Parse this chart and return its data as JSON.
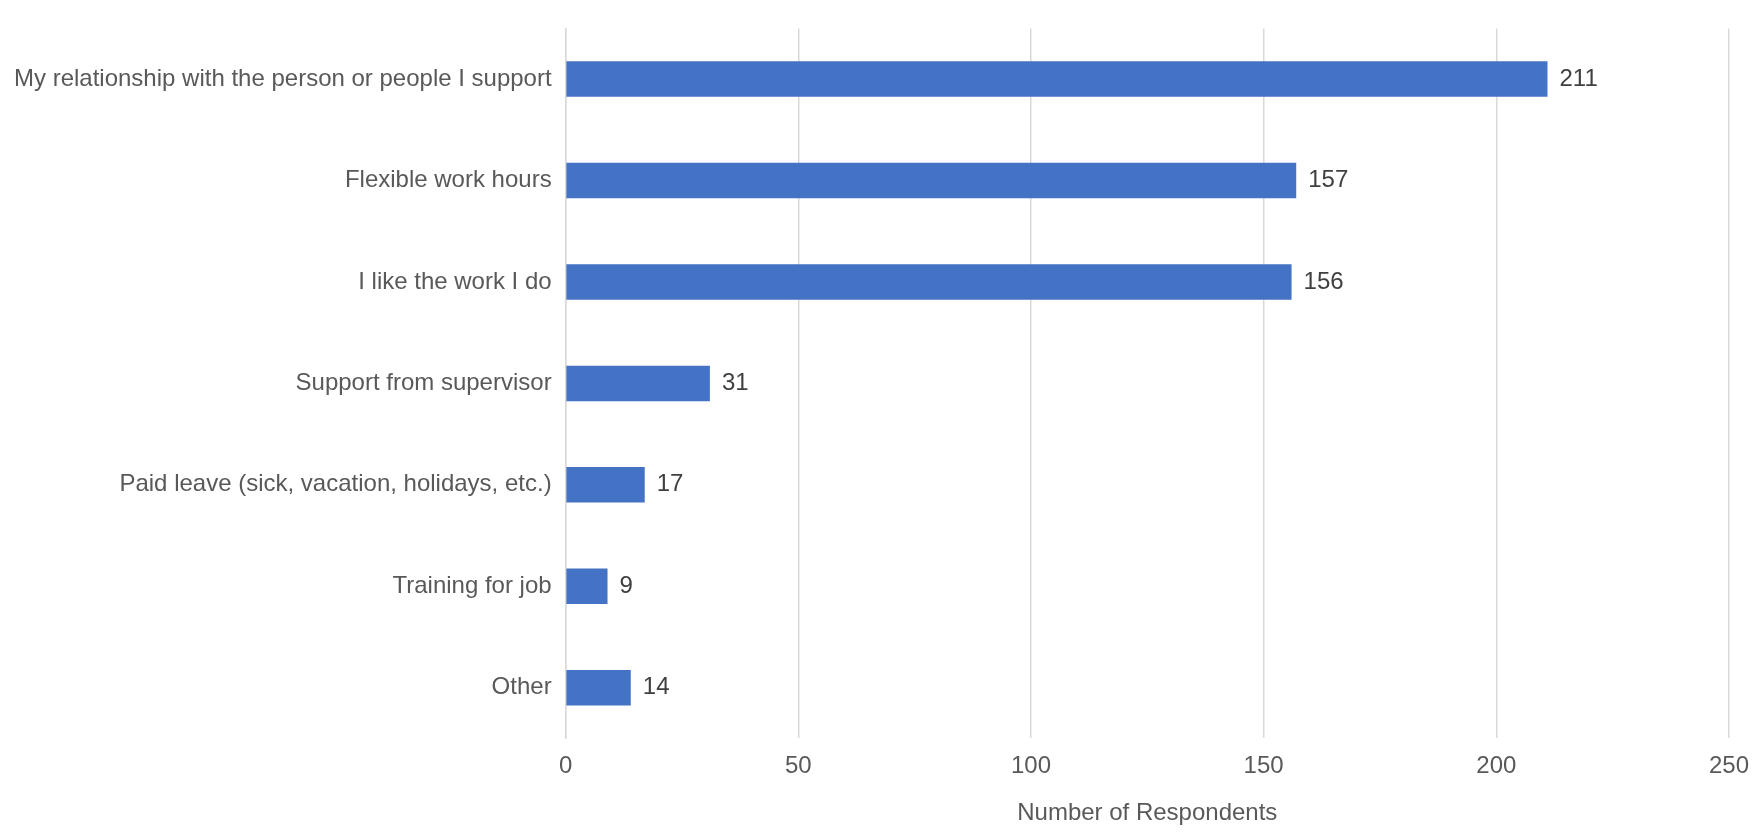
{
  "chart_data": {
    "type": "bar",
    "orientation": "horizontal",
    "xlabel": "Number of Respondents",
    "categories": [
      "My relationship with the person or people I support",
      "Flexible work hours",
      "I like the work I do",
      "Support from supervisor",
      "Paid leave (sick, vacation, holidays, etc.)",
      "Training for job",
      "Other"
    ],
    "values": [
      211,
      157,
      156,
      31,
      17,
      9,
      14
    ],
    "color": "#4472c4",
    "xlim": [
      0,
      250
    ],
    "xticks": [
      0,
      50,
      100,
      150,
      200,
      250
    ],
    "grid": "x",
    "data_labels": true,
    "legend": false
  }
}
